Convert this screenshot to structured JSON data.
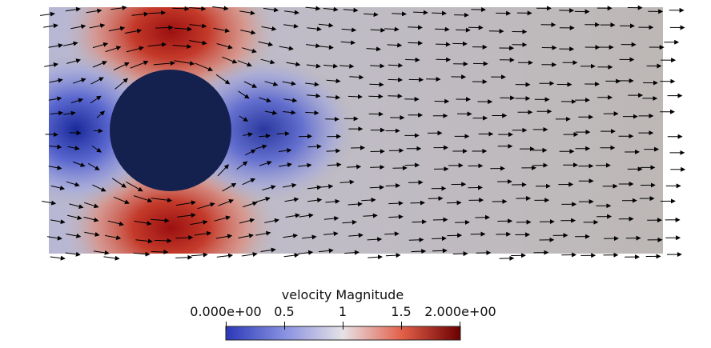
{
  "scene": {
    "background": "#ffffff",
    "field_colors": {
      "low": "#1b2a8a",
      "low_mid": "#7a86d6",
      "mid": "#dcdcdc",
      "high_mid": "#e06a55",
      "high": "#7a0a0a",
      "free_stream": "#bdb8b6",
      "obstacle": "#14214f"
    },
    "arrow_color": "#000000"
  },
  "legend": {
    "title": "velocity Magnitude",
    "ticks": [
      "0.000e+00",
      "0.5",
      "1",
      "1.5",
      "2.000e+00"
    ],
    "tick_values": [
      0,
      0.5,
      1,
      1.5,
      2
    ],
    "range": [
      0,
      2
    ],
    "colormap": "cool-to-warm"
  }
}
